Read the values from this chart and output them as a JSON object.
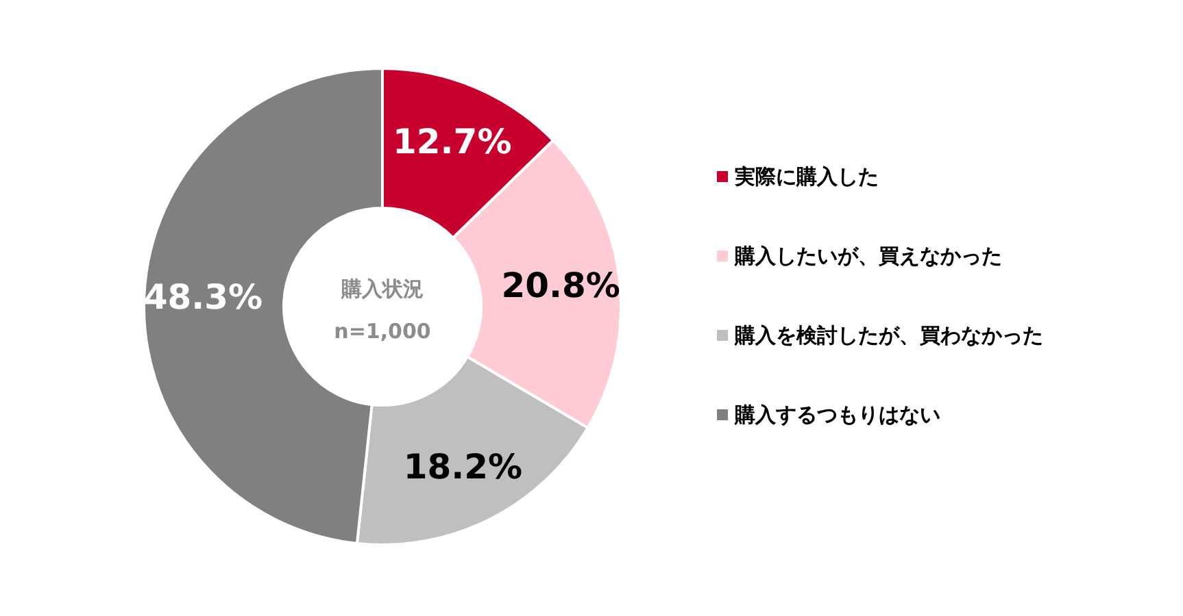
{
  "chart_data": {
    "type": "donut",
    "categories": [
      "実際に購入した",
      "購入したいが、買えなかった",
      "購入を検討したが、買わなかった",
      "購入するつもりはない"
    ],
    "values": [
      12.7,
      20.8,
      18.2,
      48.3
    ],
    "colors": [
      "#c8002d",
      "#ffccd5",
      "#bfbfbf",
      "#808080"
    ],
    "value_labels": [
      "12.7%",
      "20.8%",
      "18.2%",
      "48.3%"
    ],
    "annotations": [
      "購入状況",
      "n=1,000"
    ],
    "legend": "right"
  }
}
